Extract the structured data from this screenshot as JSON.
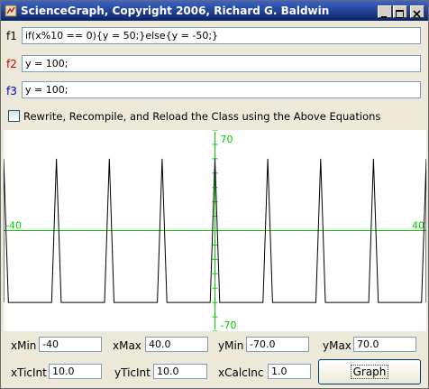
{
  "window": {
    "title": "ScienceGraph, Copyright 2006, Richard G. Baldwin",
    "title_color": "#0a246a",
    "icons": [
      "app-icon",
      "minimize-icon",
      "maximize-icon",
      "close-icon"
    ]
  },
  "equations": [
    {
      "label": "f1",
      "value": "if(x%10 == 0){y = 50;}else{y = -50;}",
      "label_color": "#000000"
    },
    {
      "label": "f2",
      "value": "y = 100;",
      "label_color": "#cc0000"
    },
    {
      "label": "f3",
      "value": "y = 100;",
      "label_color": "#0000cc"
    }
  ],
  "rewrite": {
    "label": "Rewrite, Recompile, and Reload the Class using the Above Equations",
    "checked": false
  },
  "graph": {
    "axis_color": "#00cc00",
    "curve_color": "#000000",
    "x_min_label": "-40",
    "x_max_label": "40",
    "y_max_label": "70",
    "y_min_label": "-70",
    "x_range": [
      -40,
      40
    ],
    "y_range": [
      -70,
      70
    ],
    "tic_interval_y": 10,
    "curve_high": 50,
    "curve_low": -50,
    "spike_x": [
      -40,
      -30,
      -20,
      -10,
      0,
      10,
      20,
      30,
      40
    ],
    "spike_half_width": 0.9
  },
  "controls": {
    "xmin_label": "xMin",
    "xmin_value": "-40",
    "xmax_label": "xMax",
    "xmax_value": "40.0",
    "ymin_label": "yMin",
    "ymin_value": "-70.0",
    "ymax_label": "yMax",
    "ymax_value": "70.0",
    "xticint_label": "xTicInt",
    "xticint_value": "10.0",
    "yticint_label": "yTicInt",
    "yticint_value": "10.0",
    "xcalcinc_label": "xCalcInc",
    "xcalcinc_value": "1.0",
    "graph_button_label": "Graph"
  }
}
